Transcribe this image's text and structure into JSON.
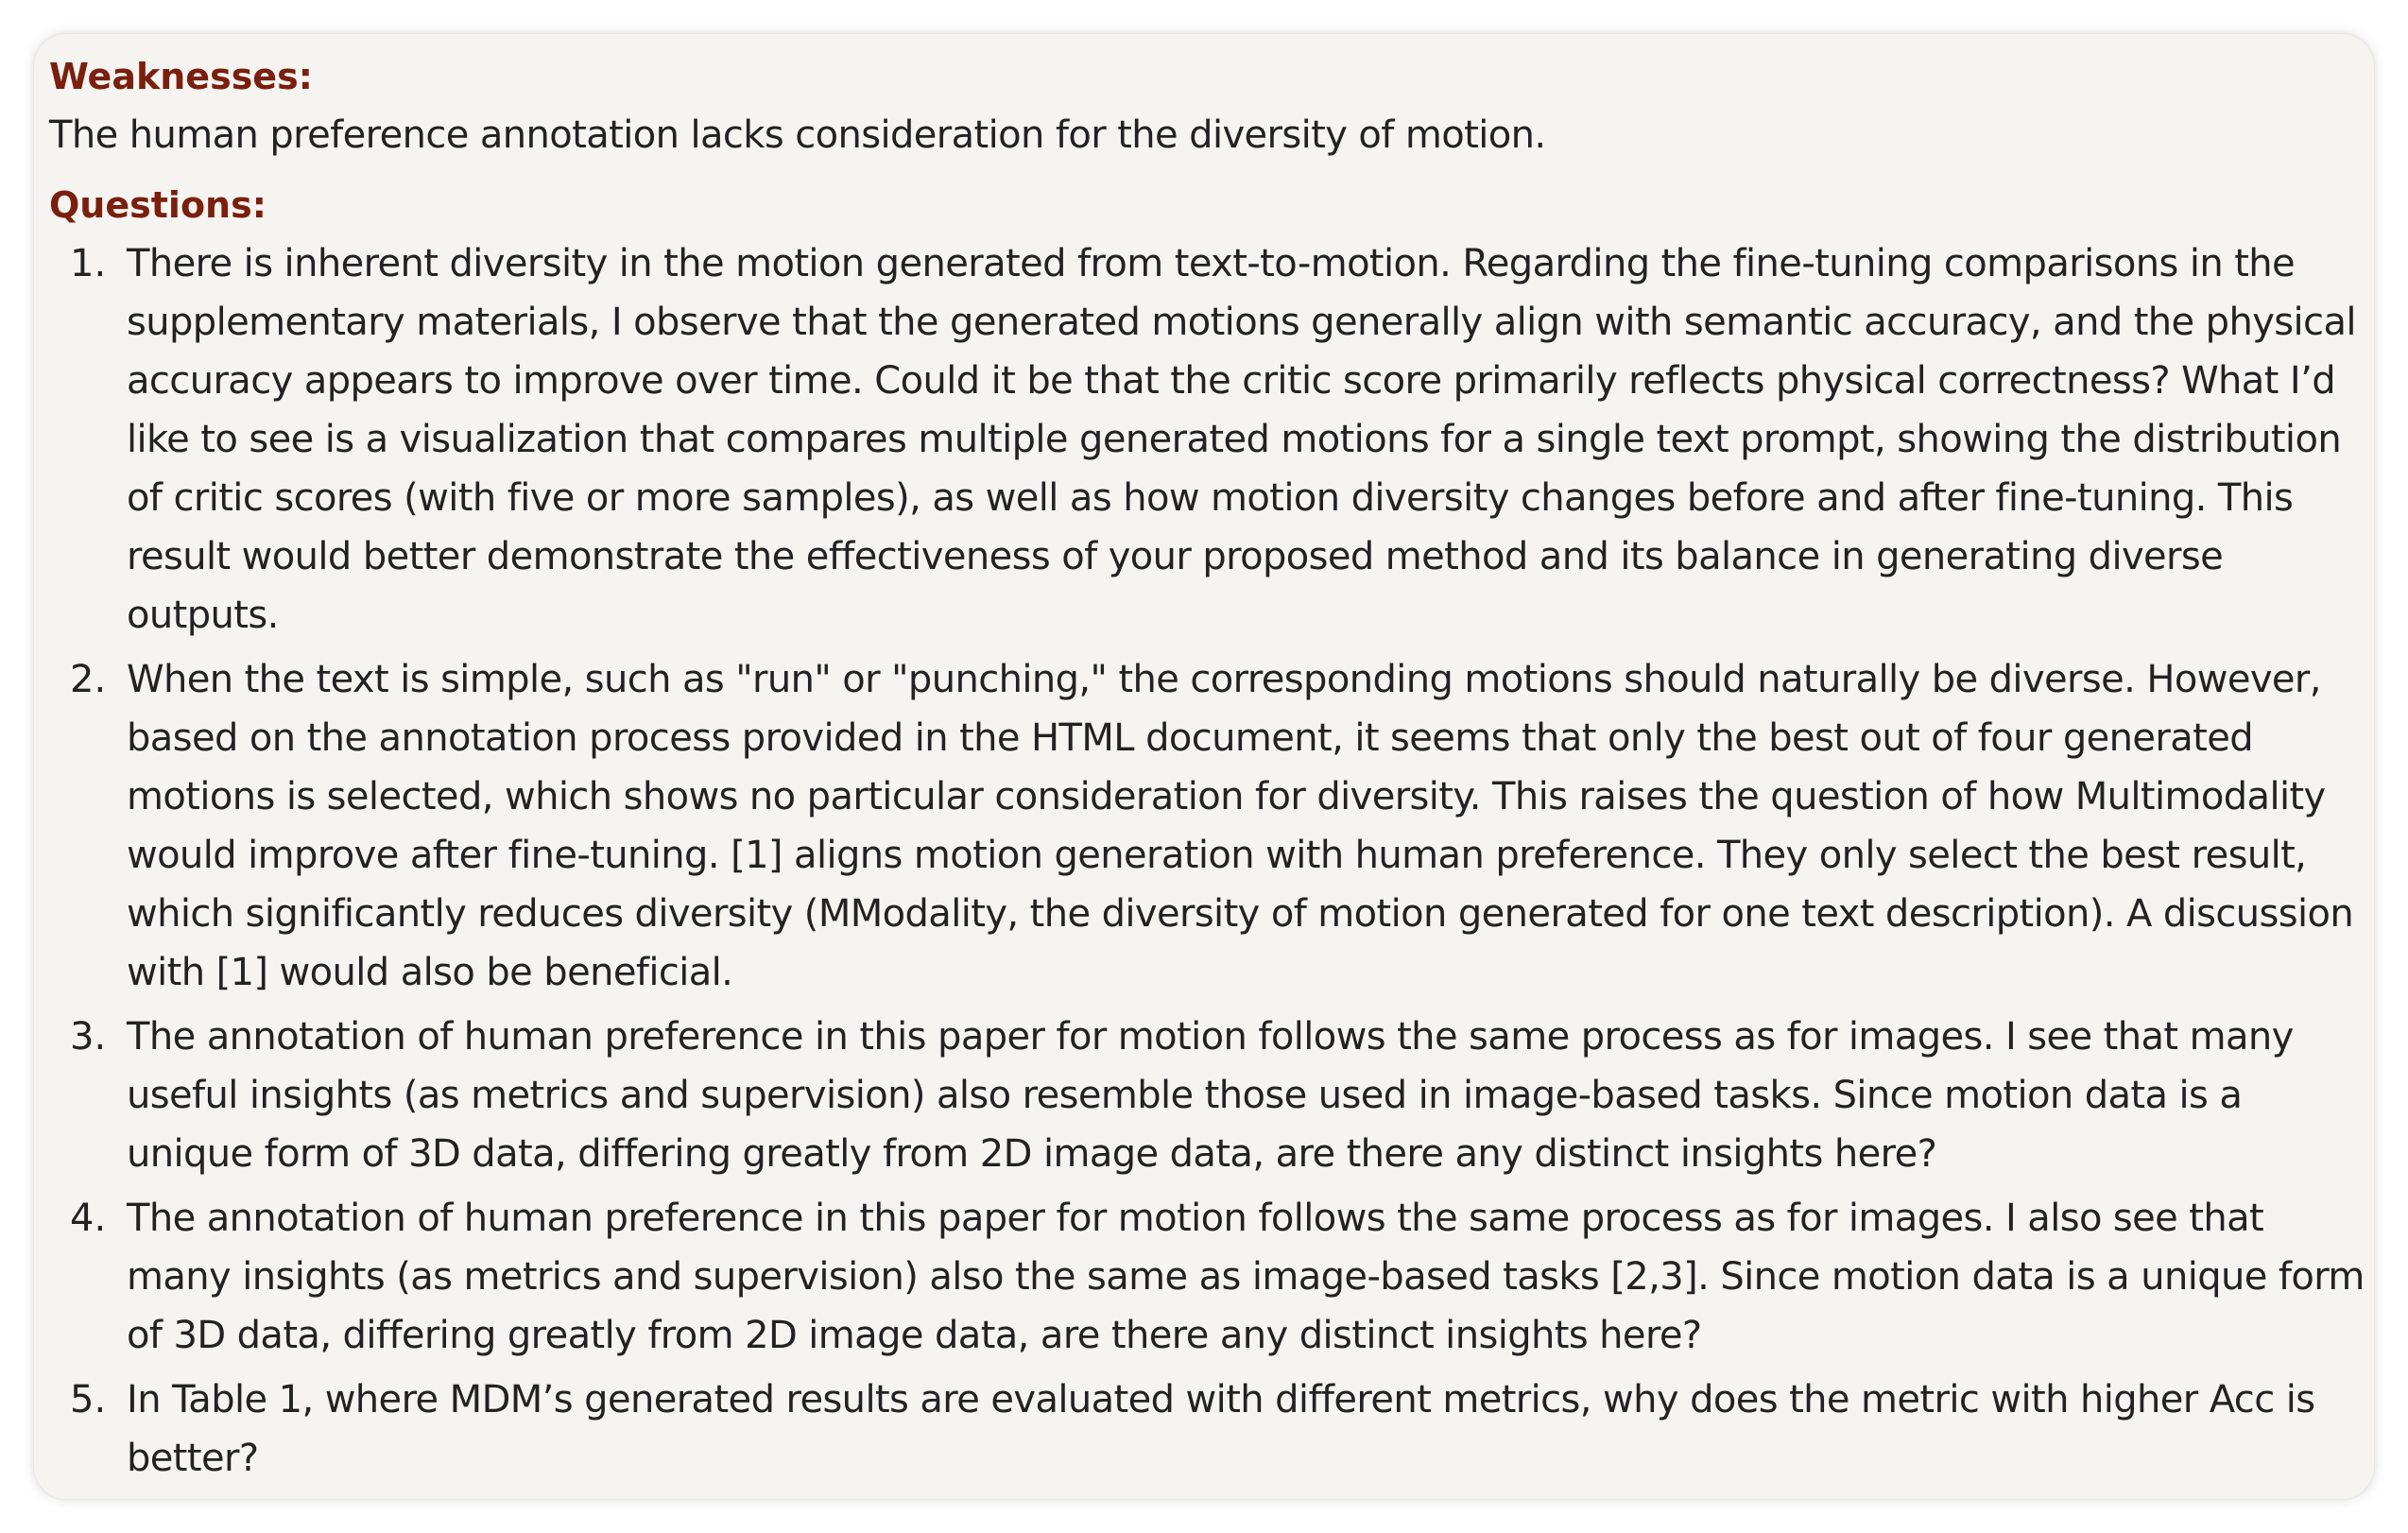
{
  "weaknesses": {
    "heading": "Weaknesses:",
    "text": "The human preference annotation lacks consideration for the diversity of motion."
  },
  "questions": {
    "heading": "Questions:",
    "items": [
      {
        "number": "1.",
        "lines": [
          "There is inherent diversity in the motion generated from text-to-motion. Regarding the fine-tuning comparisons in the",
          "supplementary materials, I observe that the generated motions generally align with semantic accuracy, and the physical",
          "accuracy appears to improve over time. Could it be that the critic score primarily reflects physical correctness? What I’d",
          "like to see is a visualization that compares multiple generated motions for a single text prompt, showing the distribution",
          "of critic scores (with five or more samples), as well as how motion diversity changes before and after fine-tuning. This",
          "result would better demonstrate the effectiveness of your proposed method and its balance in generating diverse",
          "outputs."
        ]
      },
      {
        "number": "2.",
        "lines": [
          "When the text is simple, such as \"run\" or \"punching,\" the corresponding motions should naturally be diverse. However,",
          "based on the annotation process provided in the HTML document, it seems that only the best out of four generated",
          "motions is selected, which shows no particular consideration for diversity. This raises the question of how Multimodality",
          "would improve after fine-tuning. [1] aligns motion generation with human preference. They only select the best result,",
          "which significantly reduces diversity (MModality, the diversity of motion generated for one text description). A discussion",
          "with [1] would also be beneficial."
        ]
      },
      {
        "number": "3.",
        "lines": [
          "The annotation of human preference in this paper for motion follows the same process as for images. I see that many",
          "useful insights (as metrics and supervision) also resemble those used in image-based tasks. Since motion data is a",
          "unique form of 3D data, differing greatly from 2D image data, are there any distinct insights here?"
        ]
      },
      {
        "number": "4.",
        "lines": [
          "The annotation of human preference in this paper for motion follows the same process as for images. I also see that",
          "many insights (as metrics and supervision) also the same as image-based tasks [2,3]. Since motion data is a unique form",
          "of 3D data, differing greatly from 2D image data, are there any distinct insights here?"
        ]
      },
      {
        "number": "5.",
        "lines": [
          "In Table 1, where MDM’s generated results are evaluated with different metrics, why does the metric with higher Acc is",
          "better?"
        ]
      }
    ]
  }
}
